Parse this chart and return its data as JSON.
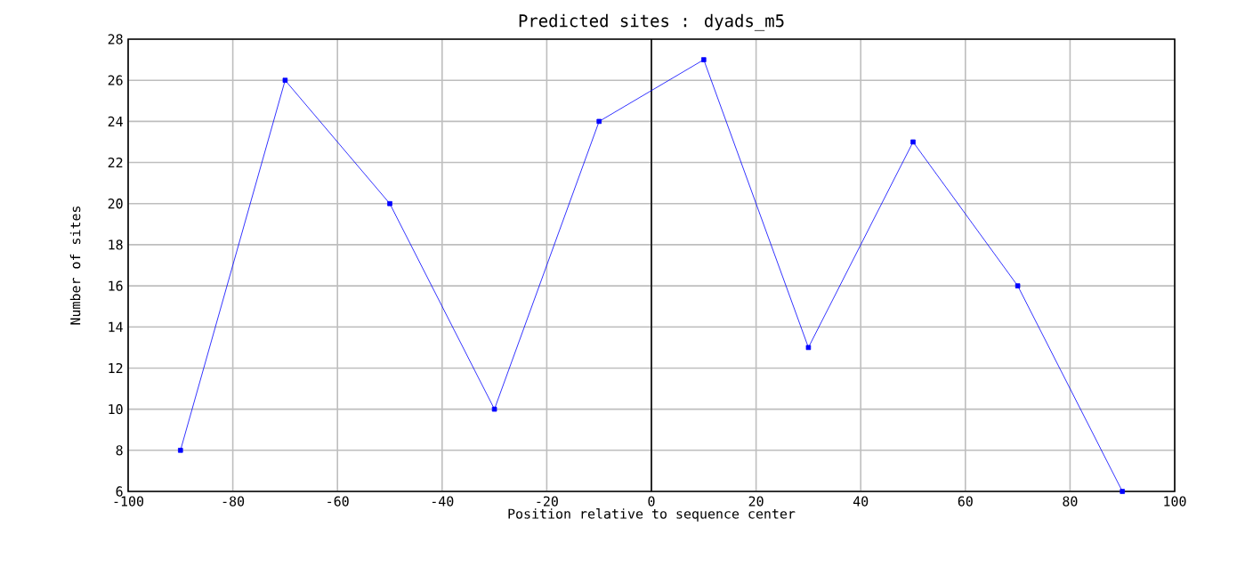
{
  "chart_data": {
    "type": "line",
    "title": "Predicted sites : dyads_m5",
    "xlabel": "Position relative to sequence center",
    "ylabel": "Number of sites",
    "x": [
      -90,
      -70,
      -50,
      -30,
      -10,
      10,
      30,
      50,
      70,
      90
    ],
    "series": [
      {
        "color": "#0000ff",
        "values": [
          8,
          26,
          20,
          10,
          24,
          27,
          13,
          23,
          16,
          6
        ]
      }
    ],
    "xlim": [
      -100,
      100
    ],
    "xticks": [
      -100,
      -80,
      -60,
      -40,
      -20,
      0,
      20,
      40,
      60,
      80,
      100
    ],
    "ylim": [
      6,
      28
    ],
    "yticks": [
      6,
      8,
      10,
      12,
      14,
      16,
      18,
      20,
      22,
      24,
      26,
      28
    ],
    "grid": true,
    "marker": "square",
    "line_style": "solid",
    "ref_lines": [
      {
        "axis": "x",
        "value": 0,
        "color": "#000000"
      }
    ]
  }
}
